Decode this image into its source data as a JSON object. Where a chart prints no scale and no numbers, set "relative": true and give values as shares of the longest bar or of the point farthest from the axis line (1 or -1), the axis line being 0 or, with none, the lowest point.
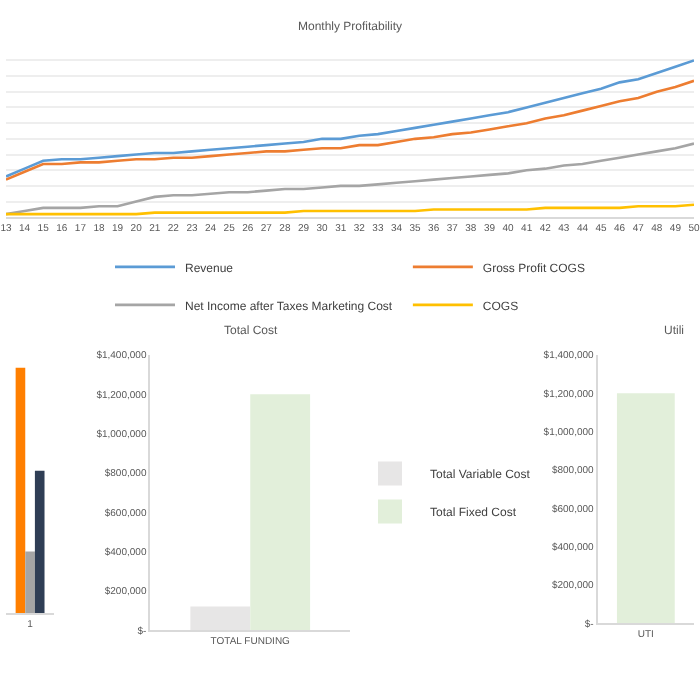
{
  "chart_data": [
    {
      "type": "line",
      "title": "Monthly Profitability",
      "relative": true,
      "grid": true,
      "legend": "bottom",
      "marker": "none",
      "line_style": "solid",
      "categories": [
        "13",
        "14",
        "15",
        "16",
        "17",
        "18",
        "19",
        "20",
        "21",
        "22",
        "23",
        "24",
        "25",
        "26",
        "27",
        "28",
        "29",
        "30",
        "31",
        "32",
        "33",
        "34",
        "35",
        "36",
        "37",
        "38",
        "39",
        "40",
        "41",
        "42",
        "43",
        "44",
        "45",
        "46",
        "47",
        "48",
        "49",
        "50"
      ],
      "series": [
        {
          "name": "Revenue",
          "color": "#5b9bd5",
          "values": [
            0.26,
            0.31,
            0.36,
            0.37,
            0.37,
            0.38,
            0.39,
            0.4,
            0.41,
            0.41,
            0.42,
            0.43,
            0.44,
            0.45,
            0.46,
            0.47,
            0.48,
            0.5,
            0.5,
            0.52,
            0.53,
            0.55,
            0.57,
            0.59,
            0.61,
            0.63,
            0.65,
            0.67,
            0.7,
            0.73,
            0.76,
            0.79,
            0.82,
            0.86,
            0.88,
            0.92,
            0.96,
            1
          ]
        },
        {
          "name": "Gross Profit COGS",
          "color": "#ed7d31",
          "values": [
            0.24,
            0.29,
            0.34,
            0.34,
            0.35,
            0.35,
            0.36,
            0.37,
            0.37,
            0.38,
            0.38,
            0.39,
            0.4,
            0.41,
            0.42,
            0.42,
            0.43,
            0.44,
            0.44,
            0.46,
            0.46,
            0.48,
            0.5,
            0.51,
            0.53,
            0.54,
            0.56,
            0.58,
            0.6,
            0.63,
            0.65,
            0.68,
            0.71,
            0.74,
            0.76,
            0.8,
            0.83,
            0.87
          ]
        },
        {
          "name": "Net Income after Taxes Marketing Cost",
          "color": "#a5a5a5",
          "values": [
            0.02,
            0.04,
            0.06,
            0.06,
            0.06,
            0.07,
            0.07,
            0.1,
            0.13,
            0.14,
            0.14,
            0.15,
            0.16,
            0.16,
            0.17,
            0.18,
            0.18,
            0.19,
            0.2,
            0.2,
            0.21,
            0.22,
            0.23,
            0.24,
            0.25,
            0.26,
            0.27,
            0.28,
            0.3,
            0.31,
            0.33,
            0.34,
            0.36,
            0.38,
            0.4,
            0.42,
            0.44,
            0.47
          ]
        },
        {
          "name": "COGS",
          "color": "#ffc000",
          "values": [
            0.02,
            0.02,
            0.02,
            0.02,
            0.02,
            0.02,
            0.02,
            0.02,
            0.03,
            0.03,
            0.03,
            0.03,
            0.03,
            0.03,
            0.03,
            0.03,
            0.04,
            0.04,
            0.04,
            0.04,
            0.04,
            0.04,
            0.04,
            0.05,
            0.05,
            0.05,
            0.05,
            0.05,
            0.05,
            0.06,
            0.06,
            0.06,
            0.06,
            0.06,
            0.07,
            0.07,
            0.07,
            0.08
          ]
        }
      ]
    },
    {
      "type": "bar",
      "relative": true,
      "categories": [
        "1"
      ],
      "series": [
        {
          "color": "#ff7f00",
          "values": [
            1
          ]
        },
        {
          "color": "#a5a5a5",
          "values": [
            0.25
          ]
        },
        {
          "color": "#2f3e55",
          "values": [
            0.58
          ]
        }
      ]
    },
    {
      "type": "bar",
      "title": "Total Cost",
      "legend": "right",
      "categories": [
        "TOTAL FUNDING"
      ],
      "ylim": [
        0,
        1400000
      ],
      "yticks": [
        {
          "value": 0,
          "label": "$-"
        },
        {
          "value": 200000,
          "label": "$200,000"
        },
        {
          "value": 400000,
          "label": "$400,000"
        },
        {
          "value": 600000,
          "label": "$600,000"
        },
        {
          "value": 800000,
          "label": "$800,000"
        },
        {
          "value": 1000000,
          "label": "$1,000,000"
        },
        {
          "value": 1200000,
          "label": "$1,200,000"
        },
        {
          "value": 1400000,
          "label": "$1,400,000"
        }
      ],
      "series": [
        {
          "name": "Total Variable Cost",
          "color": "#e7e6e6",
          "values": [
            120000
          ]
        },
        {
          "name": "Total Fixed Cost",
          "color": "#e2efda",
          "values": [
            1200000
          ]
        }
      ]
    },
    {
      "type": "bar",
      "title": "Utili",
      "categories": [
        "UTI"
      ],
      "ylim": [
        0,
        1400000
      ],
      "yticks": [
        {
          "value": 0,
          "label": "$-"
        },
        {
          "value": 200000,
          "label": "$200,000"
        },
        {
          "value": 400000,
          "label": "$400,000"
        },
        {
          "value": 600000,
          "label": "$600,000"
        },
        {
          "value": 800000,
          "label": "$800,000"
        },
        {
          "value": 1000000,
          "label": "$1,000,000"
        },
        {
          "value": 1200000,
          "label": "$1,200,000"
        },
        {
          "value": 1400000,
          "label": "$1,400,000"
        }
      ],
      "series": [
        {
          "color": "#e2efda",
          "values": [
            1200000
          ]
        }
      ]
    }
  ]
}
